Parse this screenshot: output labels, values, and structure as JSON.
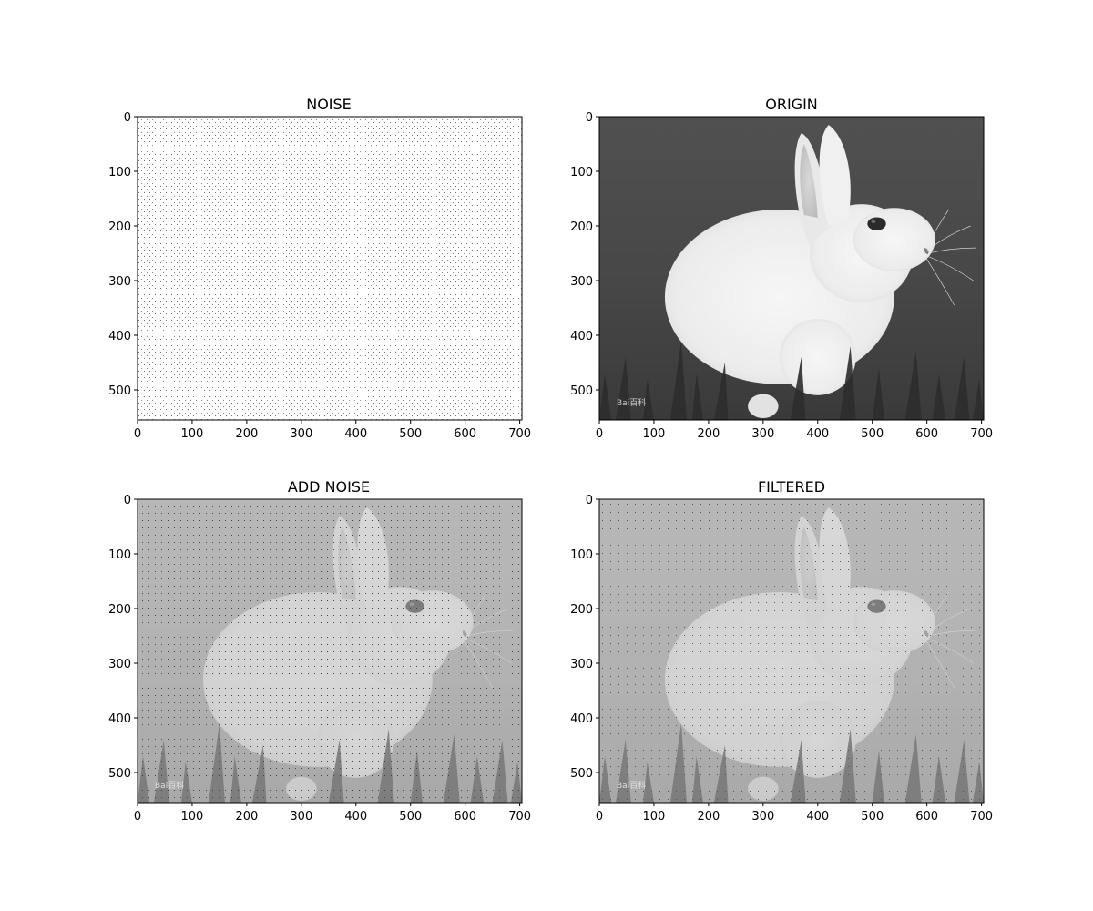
{
  "figure": {
    "background": "#ffffff",
    "panels": [
      {
        "title": "NOISE",
        "image": "sparse-dot-noise",
        "tone": "noise",
        "dot_color": "#6f6f6f",
        "background": "#ffffff"
      },
      {
        "title": "ORIGIN",
        "image": "rabbit-photo",
        "tone": "origin",
        "background": "#474747",
        "subject": "#f0f0f0",
        "watermark": "Bai百科"
      },
      {
        "title": "ADD NOISE",
        "image": "rabbit-photo-with-noise",
        "tone": "noisy",
        "background": "#9a9a9a",
        "subject": "#f6f6f6",
        "watermark": "Bai百科"
      },
      {
        "title": "FILTERED",
        "image": "rabbit-photo-filtered",
        "tone": "filtered",
        "background": "#9b9b9b",
        "subject": "#f5f5f5",
        "watermark": "Bai百科"
      }
    ]
  },
  "chart_data": [
    {
      "type": "image",
      "title": "NOISE",
      "xlim": [
        0,
        704
      ],
      "ylim": [
        555,
        0
      ],
      "xticks": [
        0,
        100,
        200,
        300,
        400,
        500,
        600,
        700
      ],
      "yticks": [
        0,
        100,
        200,
        300,
        400,
        500
      ],
      "xlabel": "",
      "ylabel": "",
      "grid": false
    },
    {
      "type": "image",
      "title": "ORIGIN",
      "xlim": [
        0,
        704
      ],
      "ylim": [
        555,
        0
      ],
      "xticks": [
        0,
        100,
        200,
        300,
        400,
        500,
        600,
        700
      ],
      "yticks": [
        0,
        100,
        200,
        300,
        400,
        500
      ],
      "xlabel": "",
      "ylabel": "",
      "grid": false
    },
    {
      "type": "image",
      "title": "ADD NOISE",
      "xlim": [
        0,
        704
      ],
      "ylim": [
        555,
        0
      ],
      "xticks": [
        0,
        100,
        200,
        300,
        400,
        500,
        600,
        700
      ],
      "yticks": [
        0,
        100,
        200,
        300,
        400,
        500
      ],
      "xlabel": "",
      "ylabel": "",
      "grid": false
    },
    {
      "type": "image",
      "title": "FILTERED",
      "xlim": [
        0,
        704
      ],
      "ylim": [
        555,
        0
      ],
      "xticks": [
        0,
        100,
        200,
        300,
        400,
        500,
        600,
        700
      ],
      "yticks": [
        0,
        100,
        200,
        300,
        400,
        500
      ],
      "xlabel": "",
      "ylabel": "",
      "grid": false
    }
  ]
}
